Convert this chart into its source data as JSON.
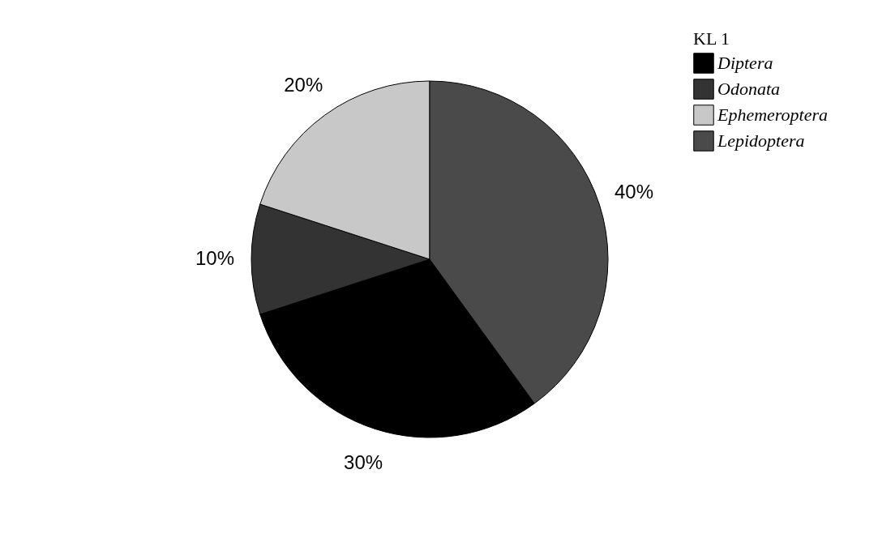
{
  "chart_data": {
    "type": "pie",
    "legend_title": "KL 1",
    "legend": "top right",
    "categories": [
      "Diptera",
      "Odonata",
      "Ephemeroptera",
      "Lepidoptera"
    ],
    "values": [
      30,
      10,
      20,
      40
    ],
    "colors": [
      "#000000",
      "#333333",
      "#c8c8c8",
      "#4a4a4a"
    ],
    "value_labels": [
      "30%",
      "10%",
      "20%",
      "40%"
    ]
  }
}
